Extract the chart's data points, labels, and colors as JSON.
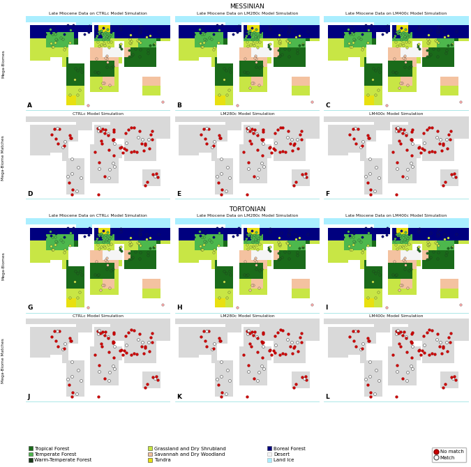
{
  "title_messinian": "MESSINIAN",
  "title_tortonian": "TORTONIAN",
  "row1_titles": [
    "Late Miocene Data on CTRLc Model Simulation",
    "Late Miocene Data on LM280c Model Simulation",
    "Late Miocene Data on LM400c Model Simulation"
  ],
  "row2_titles": [
    "CTRLc Model Simulation",
    "LM280c Model Simulation",
    "LM400c Model Simulation"
  ],
  "row3_titles": [
    "Late Miocene Data on CTRLc Model Simulation",
    "Late Miocene Data on LM280c Model Simulation",
    "Late Miocene Data on LM400c Model Simulation"
  ],
  "row4_titles": [
    "CTRLc Model Simulation",
    "LM280c Model Simulation",
    "LM400c Model Simulation"
  ],
  "panel_labels": [
    "A",
    "B",
    "C",
    "D",
    "E",
    "F",
    "G",
    "H",
    "I",
    "J",
    "K",
    "L"
  ],
  "ylabels": [
    "Mega-Biomes",
    "Mega-Biome Matches",
    "Mega-Biomes",
    "Mega-Biome Matches"
  ],
  "biome_colors": {
    "tropical": "#1a6b1a",
    "temperate": "#4db84d",
    "warm_temp": "#1a3a1a",
    "grassland": "#c8e645",
    "savannah": "#f4c2a0",
    "tundra": "#e8e010",
    "boreal": "#00007f",
    "desert": "#f5f5f5",
    "land_ice": "#aaeeff"
  },
  "ocean_color": "#aaccee",
  "land_bg_color": "#d9d9d9",
  "no_match_color": "#cc0000",
  "match_color": "#ffffff",
  "match_edge_color": "#666666"
}
